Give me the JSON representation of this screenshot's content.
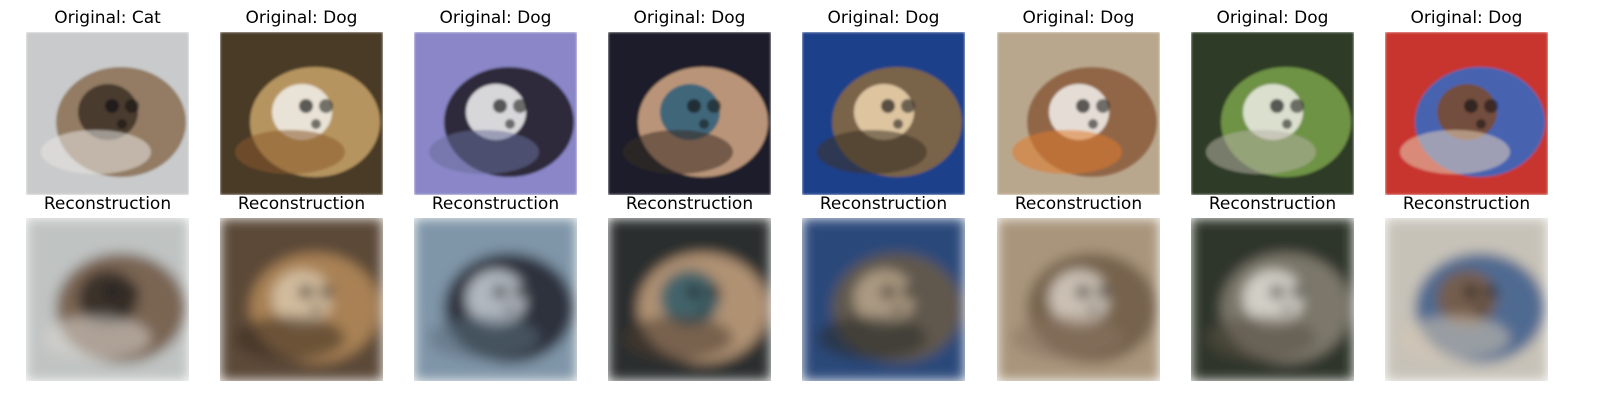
{
  "figure": {
    "columns": [
      {
        "original_title": "Original: Cat",
        "reconstruction_title": "Reconstruction",
        "subject": "cat",
        "original_colors": [
          "#c9cacb",
          "#8a6f52",
          "#3b3026",
          "#e7e6e2"
        ],
        "reconstruction_colors": [
          "#bfc3c2",
          "#6d5540",
          "#2f2a25",
          "#d9d6d0"
        ]
      },
      {
        "original_title": "Original: Dog",
        "reconstruction_title": "Reconstruction",
        "subject": "dog",
        "original_colors": [
          "#4a3a26",
          "#c9a56a",
          "#f2f0eb",
          "#8b5a2b",
          "#e2b600"
        ],
        "reconstruction_colors": [
          "#5b4937",
          "#b78b5a",
          "#d8c6aa",
          "#3a2c21"
        ]
      },
      {
        "original_title": "Original: Dog",
        "reconstruction_title": "Reconstruction",
        "subject": "dog",
        "original_colors": [
          "#8a86c8",
          "#1c1b22",
          "#f6f6f7",
          "#6a6e9a"
        ],
        "reconstruction_colors": [
          "#7f95a8",
          "#1f2229",
          "#c9cfd6",
          "#5a6b7a"
        ]
      },
      {
        "original_title": "Original: Dog",
        "reconstruction_title": "Reconstruction",
        "subject": "dog",
        "original_colors": [
          "#1a1f2c",
          "#d6a986",
          "#2b5e7a",
          "#3a2a22"
        ],
        "reconstruction_colors": [
          "#2b2d2f",
          "#c8a47f",
          "#2f5a6a",
          "#4a3a2e"
        ]
      },
      {
        "original_title": "Original: Dog",
        "reconstruction_title": "Reconstruction",
        "subject": "dog",
        "original_colors": [
          "#1b3f8a",
          "#8a6a3c",
          "#f0d6b0",
          "#3c3125"
        ],
        "reconstruction_colors": [
          "#2a4a7a",
          "#6b5a45",
          "#b9a68c",
          "#2c2b2a"
        ]
      },
      {
        "original_title": "Original: Dog",
        "reconstruction_title": "Reconstruction",
        "subject": "dog",
        "original_colors": [
          "#b9a78d",
          "#8a5a3a",
          "#f3f2ef",
          "#e07a2c"
        ],
        "reconstruction_colors": [
          "#a9957c",
          "#6f5a46",
          "#d8d0c5",
          "#8a7462"
        ]
      },
      {
        "original_title": "Original: Dog",
        "reconstruction_title": "Reconstruction",
        "subject": "dog",
        "original_colors": [
          "#2d3b25",
          "#7aa34a",
          "#efece6",
          "#b7b1a6"
        ],
        "reconstruction_colors": [
          "#2f3429",
          "#8a8475",
          "#e2ded6",
          "#5a5247"
        ]
      },
      {
        "original_title": "Original: Dog",
        "reconstruction_title": "Reconstruction",
        "subject": "dog",
        "original_colors": [
          "#c8342e",
          "#2f6cc7",
          "#7b4a2a",
          "#e7d2b8"
        ],
        "reconstruction_colors": [
          "#c7c2b8",
          "#3a5a8a",
          "#7a5a42",
          "#d6c7b2"
        ]
      }
    ]
  }
}
